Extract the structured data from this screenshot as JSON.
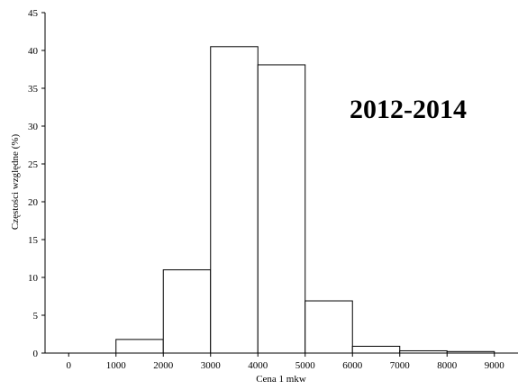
{
  "chart_data": {
    "type": "bar",
    "subtype": "histogram",
    "bins": [
      {
        "from": 1000,
        "to": 2000,
        "value": 1.8
      },
      {
        "from": 2000,
        "to": 3000,
        "value": 11.0
      },
      {
        "from": 3000,
        "to": 4000,
        "value": 40.5
      },
      {
        "from": 4000,
        "to": 5000,
        "value": 38.1
      },
      {
        "from": 5000,
        "to": 6000,
        "value": 6.9
      },
      {
        "from": 6000,
        "to": 7000,
        "value": 0.9
      },
      {
        "from": 7000,
        "to": 8000,
        "value": 0.3
      },
      {
        "from": 8000,
        "to": 9000,
        "value": 0.2
      }
    ],
    "xticks": [
      "0",
      "1000",
      "2000",
      "3000",
      "4000",
      "5000",
      "6000",
      "7000",
      "8000",
      "9000"
    ],
    "yticks": [
      "0",
      "5",
      "10",
      "15",
      "20",
      "25",
      "30",
      "35",
      "40",
      "45"
    ],
    "xlabel": "Cena 1 mkw",
    "ylabel": "Częstości względne (%)",
    "annotation": "2012-2014",
    "xlim": [
      -500,
      9500
    ],
    "ylim": [
      0,
      45
    ],
    "grid": false,
    "bar_fill": "#ffffff",
    "bar_stroke": "#000000"
  }
}
